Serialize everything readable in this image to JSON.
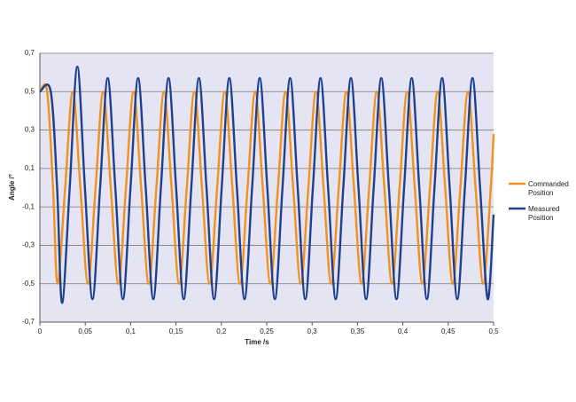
{
  "chart_data": {
    "type": "line",
    "xlabel": "Time /s",
    "ylabel": "Angle /°",
    "xlim": [
      0,
      0.5
    ],
    "ylim": [
      -0.7,
      0.7
    ],
    "xticks": [
      0,
      {
        "value": 0.05,
        "label": "0,05"
      },
      {
        "value": 0.1,
        "label": "0,1"
      },
      {
        "value": 0.15,
        "label": "0,15"
      },
      {
        "value": 0.2,
        "label": "0,2"
      },
      {
        "value": 0.25,
        "label": "0,25"
      },
      {
        "value": 0.3,
        "label": "0,3"
      },
      {
        "value": 0.35,
        "label": "0,35"
      },
      {
        "value": 0.4,
        "label": "0,4"
      },
      {
        "value": 0.45,
        "label": "0,45"
      },
      {
        "value": 0.5,
        "label": "0,5"
      }
    ],
    "yticks": [
      {
        "value": 0.7,
        "label": "0,7"
      },
      {
        "value": 0.5,
        "label": "0,5"
      },
      {
        "value": 0.3,
        "label": "0,3"
      },
      {
        "value": 0.1,
        "label": "0,1"
      },
      {
        "value": -0.1,
        "label": "-0,1"
      },
      {
        "value": -0.3,
        "label": "-0,3"
      },
      {
        "value": -0.5,
        "label": "-0,5"
      },
      {
        "value": -0.7,
        "label": "-0,7"
      }
    ],
    "grid": true,
    "legend": "right",
    "background": "#e4e4f2",
    "series": [
      {
        "name": "Commanded Position",
        "color": "#f0921e",
        "x": [
          0,
          0.008,
          0.0145,
          0.0195,
          0.027875,
          0.03625,
          0.044625,
          0.053,
          0.061375,
          0.06975,
          0.078125,
          0.0865,
          0.094875,
          0.10325,
          0.111625,
          0.12,
          0.128375,
          0.13675,
          0.145125,
          0.1535,
          0.161875,
          0.17025,
          0.178625,
          0.187,
          0.195375,
          0.20375,
          0.212125,
          0.2205,
          0.228875,
          0.23725,
          0.245625,
          0.254,
          0.262375,
          0.27075,
          0.279125,
          0.2875,
          0.295875,
          0.30425,
          0.312625,
          0.321,
          0.329375,
          0.33775,
          0.346125,
          0.3545,
          0.362875,
          0.37125,
          0.379625,
          0.388,
          0.396375,
          0.40475,
          0.413125,
          0.4215,
          0.429875,
          0.43825,
          0.446625,
          0.455,
          0.463375,
          0.47175,
          0.480125,
          0.4885,
          0.496875,
          0.5
        ],
        "values": [
          0.5,
          0.5,
          0,
          -0.5,
          0,
          0.5,
          0,
          -0.5,
          0,
          0.5,
          0,
          -0.5,
          0,
          0.5,
          0,
          -0.5,
          0,
          0.5,
          0,
          -0.5,
          0,
          0.5,
          0,
          -0.5,
          0,
          0.5,
          0,
          -0.5,
          0,
          0.5,
          0,
          -0.5,
          0,
          0.5,
          0,
          -0.5,
          0,
          0.5,
          0,
          -0.5,
          0,
          0.5,
          0,
          -0.5,
          0,
          0.5,
          0,
          -0.5,
          0,
          0.5,
          0,
          -0.5,
          0,
          0.5,
          0,
          -0.5,
          0,
          0.5,
          0,
          -0.5,
          0,
          0.28
        ]
      },
      {
        "name": "Measured Position",
        "color": "#1f3f8f",
        "x": [
          0,
          0.012,
          0.019,
          0.0245,
          0.032875,
          0.04125,
          0.049625,
          0.058,
          0.066375,
          0.07475,
          0.083125,
          0.0915,
          0.099875,
          0.10825,
          0.116625,
          0.125,
          0.133375,
          0.14175,
          0.150125,
          0.1585,
          0.166875,
          0.17525,
          0.183625,
          0.192,
          0.200375,
          0.20875,
          0.217125,
          0.2255,
          0.233875,
          0.24225,
          0.250625,
          0.259,
          0.267375,
          0.27575,
          0.284125,
          0.2925,
          0.300875,
          0.30925,
          0.317625,
          0.326,
          0.334375,
          0.34275,
          0.351125,
          0.3595,
          0.367875,
          0.37625,
          0.384625,
          0.393,
          0.401375,
          0.40975,
          0.418125,
          0.4265,
          0.434875,
          0.44325,
          0.451625,
          0.46,
          0.468375,
          0.47675,
          0.485125,
          0.4935,
          0.5
        ],
        "values": [
          0.5,
          0.5,
          0,
          -0.6,
          0,
          0.63,
          0,
          -0.58,
          0,
          0.57,
          0,
          -0.58,
          0,
          0.57,
          0,
          -0.58,
          0,
          0.57,
          0,
          -0.58,
          0,
          0.57,
          0,
          -0.58,
          0,
          0.57,
          0,
          -0.58,
          0,
          0.57,
          0,
          -0.58,
          0,
          0.57,
          0,
          -0.58,
          0,
          0.57,
          0,
          -0.58,
          0,
          0.57,
          0,
          -0.58,
          0,
          0.57,
          0,
          -0.58,
          0,
          0.57,
          0,
          -0.58,
          0,
          0.57,
          0,
          -0.58,
          0,
          0.57,
          0,
          -0.58,
          -0.14
        ]
      }
    ]
  }
}
